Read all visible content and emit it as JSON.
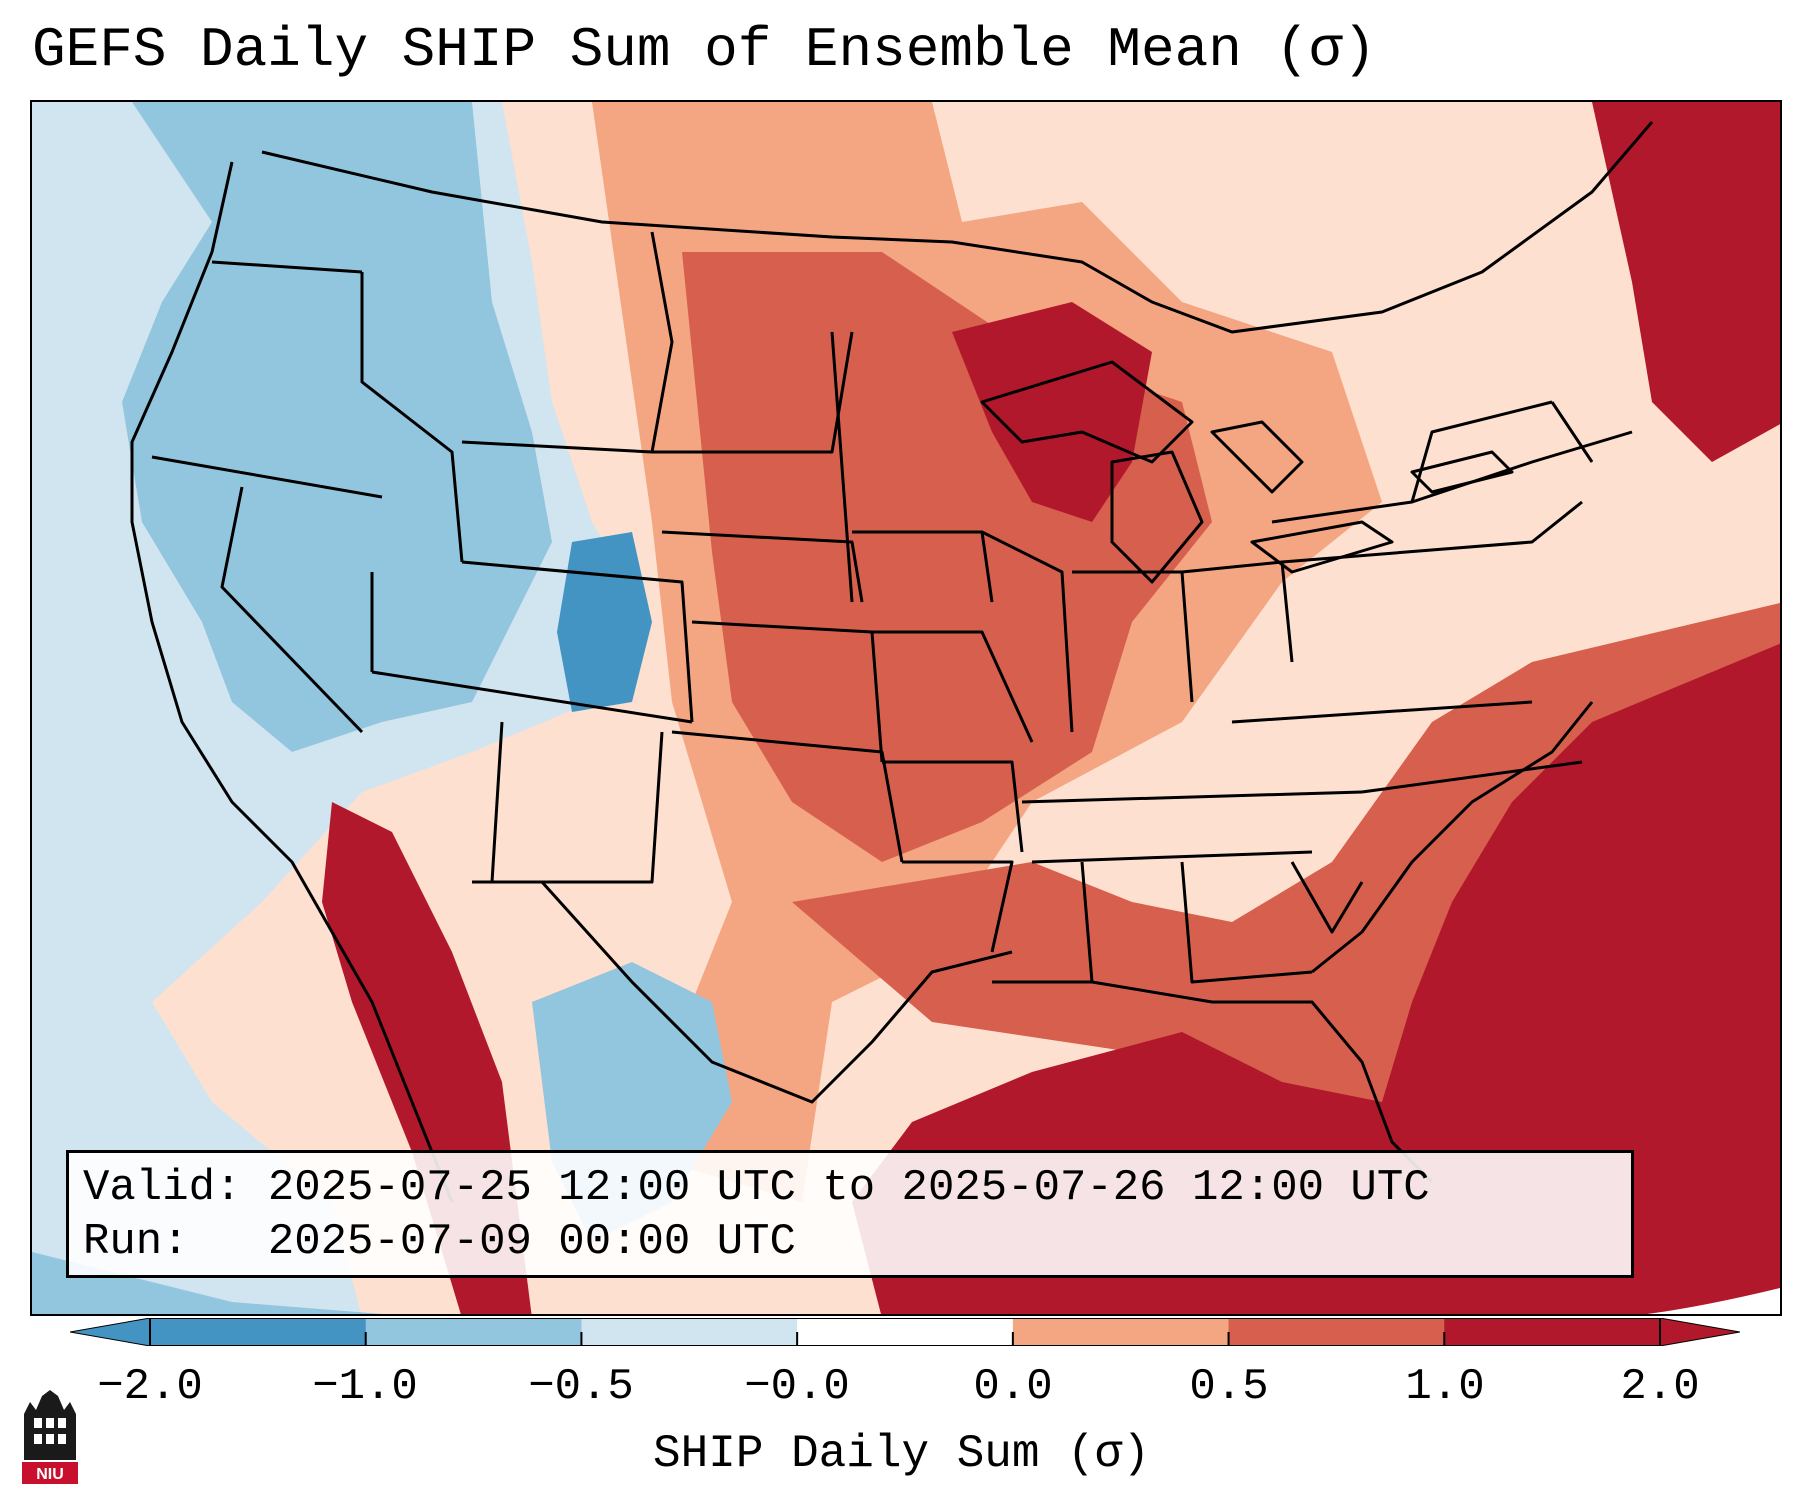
{
  "title": "GEFS Daily SHIP Sum of Ensemble Mean (σ)",
  "info": {
    "valid_label": "Valid:",
    "valid_value": "2025-07-25 12:00 UTC to 2025-07-26 12:00 UTC",
    "run_label": "Run:",
    "run_value": "2025-07-09 00:00 UTC"
  },
  "colorbar": {
    "label": "SHIP Daily Sum (σ)",
    "ticks": [
      "−2.0",
      "−1.0",
      "−0.5",
      "−0.0",
      "0.0",
      "0.5",
      "1.0",
      "2.0"
    ],
    "colors": [
      "#4393c3",
      "#92c5de",
      "#d1e5f0",
      "#fde0cf",
      "#f4a582",
      "#d6604d",
      "#b2182b"
    ],
    "extend": "both"
  },
  "logo": {
    "text": "NIU"
  },
  "map_colors": {
    "strong_neg": "#4393c3",
    "mod_neg": "#92c5de",
    "weak_neg": "#d1e5f0",
    "weak_pos": "#fde0cf",
    "mod_pos": "#f4a582",
    "strong_pos": "#d6604d",
    "very_strong_pos": "#b2182b"
  }
}
